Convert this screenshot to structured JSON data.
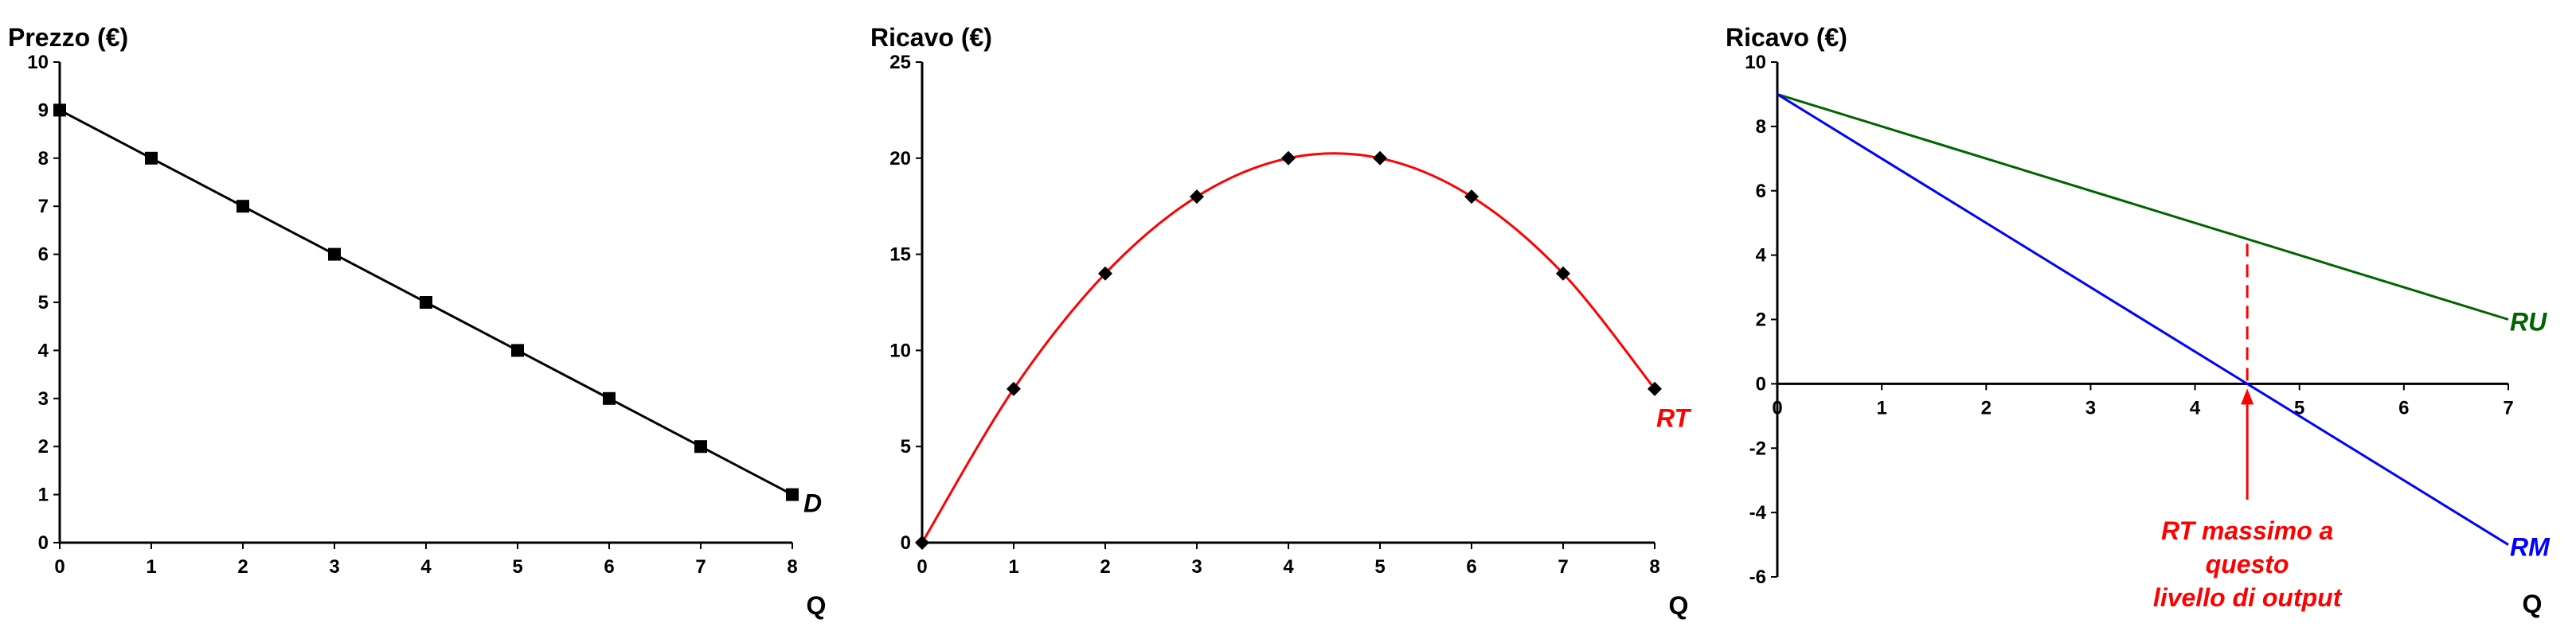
{
  "chart_data": [
    {
      "type": "line",
      "ylabel": "Prezzo (€)",
      "xlabel": "Q",
      "xlim": [
        0,
        8
      ],
      "ylim": [
        0,
        10
      ],
      "xticks": [
        0,
        1,
        2,
        3,
        4,
        5,
        6,
        7,
        8
      ],
      "yticks": [
        0,
        1,
        2,
        3,
        4,
        5,
        6,
        7,
        8,
        9,
        10
      ],
      "grid": false,
      "series": [
        {
          "name": "D",
          "color": "#000000",
          "marker": "square",
          "x": [
            0,
            1,
            2,
            3,
            4,
            5,
            6,
            7,
            8
          ],
          "y": [
            9,
            8,
            7,
            6,
            5,
            4,
            3,
            2,
            1
          ]
        }
      ]
    },
    {
      "type": "line",
      "ylabel": "Ricavo (€)",
      "xlabel": "Q",
      "xlim": [
        0,
        8
      ],
      "ylim": [
        0,
        25
      ],
      "xticks": [
        0,
        1,
        2,
        3,
        4,
        5,
        6,
        7,
        8
      ],
      "yticks": [
        0,
        5,
        10,
        15,
        20,
        25
      ],
      "grid": false,
      "series": [
        {
          "name": "RT",
          "color": "#ff0000",
          "marker": "diamond",
          "marker_color": "#000000",
          "smooth": true,
          "x": [
            0,
            1,
            2,
            3,
            4,
            5,
            6,
            7,
            8
          ],
          "y": [
            0,
            8,
            14,
            18,
            20,
            20,
            18,
            14,
            8
          ]
        }
      ]
    },
    {
      "type": "line",
      "ylabel": "Ricavo (€)",
      "xlabel": "Q",
      "xlim": [
        0,
        7
      ],
      "ylim": [
        -6,
        10
      ],
      "xticks": [
        0,
        1,
        2,
        3,
        4,
        5,
        6,
        7
      ],
      "yticks": [
        -6,
        -4,
        -2,
        0,
        2,
        4,
        6,
        8,
        10
      ],
      "grid": false,
      "series": [
        {
          "name": "RU",
          "color": "#006400",
          "x": [
            0,
            7
          ],
          "y": [
            9,
            2
          ]
        },
        {
          "name": "RM",
          "color": "#0000ff",
          "x": [
            0,
            7
          ],
          "y": [
            9,
            -5
          ]
        }
      ],
      "annotations": [
        {
          "type": "vline-dashed",
          "x": 4.5,
          "y_from": 0,
          "y_to": 4.5,
          "color": "#ff0000"
        },
        {
          "type": "arrow",
          "x": 4.5,
          "y_from": -3.6,
          "y_to": 0,
          "color": "#ff0000",
          "text": [
            "RT massimo a",
            "questo",
            "livello di output"
          ]
        }
      ]
    }
  ]
}
